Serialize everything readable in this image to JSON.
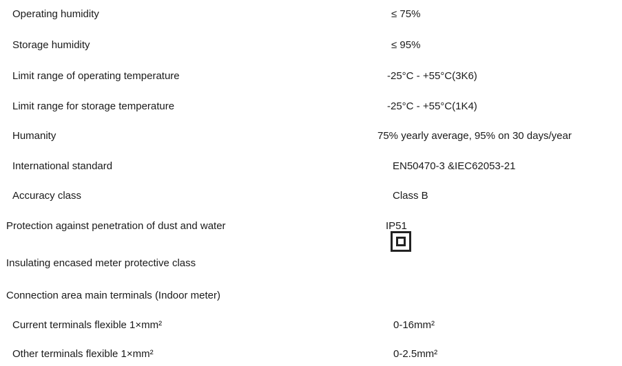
{
  "specs": {
    "rows": [
      {
        "label": "Operating humidity",
        "value": "≤ 75%"
      },
      {
        "label": "Storage humidity",
        "value": "≤ 95%"
      },
      {
        "label": "Limit range of operating temperature",
        "value": "-25°C - +55°C(3K6)"
      },
      {
        "label": "Limit range for storage temperature",
        "value": "-25°C - +55°C(1K4)"
      },
      {
        "label": "Humanity",
        "value": "75% yearly average, 95% on 30 days/year"
      },
      {
        "label": "International standard",
        "value": "EN50470-3 &IEC62053-21"
      },
      {
        "label": "Accuracy class",
        "value": "Class B"
      },
      {
        "label": "Protection against penetration of dust and water",
        "value": "IP51"
      },
      {
        "label": "Insulating encased meter protective class"
      },
      {
        "label": "Connection area main terminals (Indoor meter)"
      },
      {
        "label": "Current terminals flexible 1×mm²",
        "value": "0-16mm²"
      },
      {
        "label": "Other terminals flexible 1×mm²",
        "value": "0-2.5mm²"
      }
    ]
  }
}
